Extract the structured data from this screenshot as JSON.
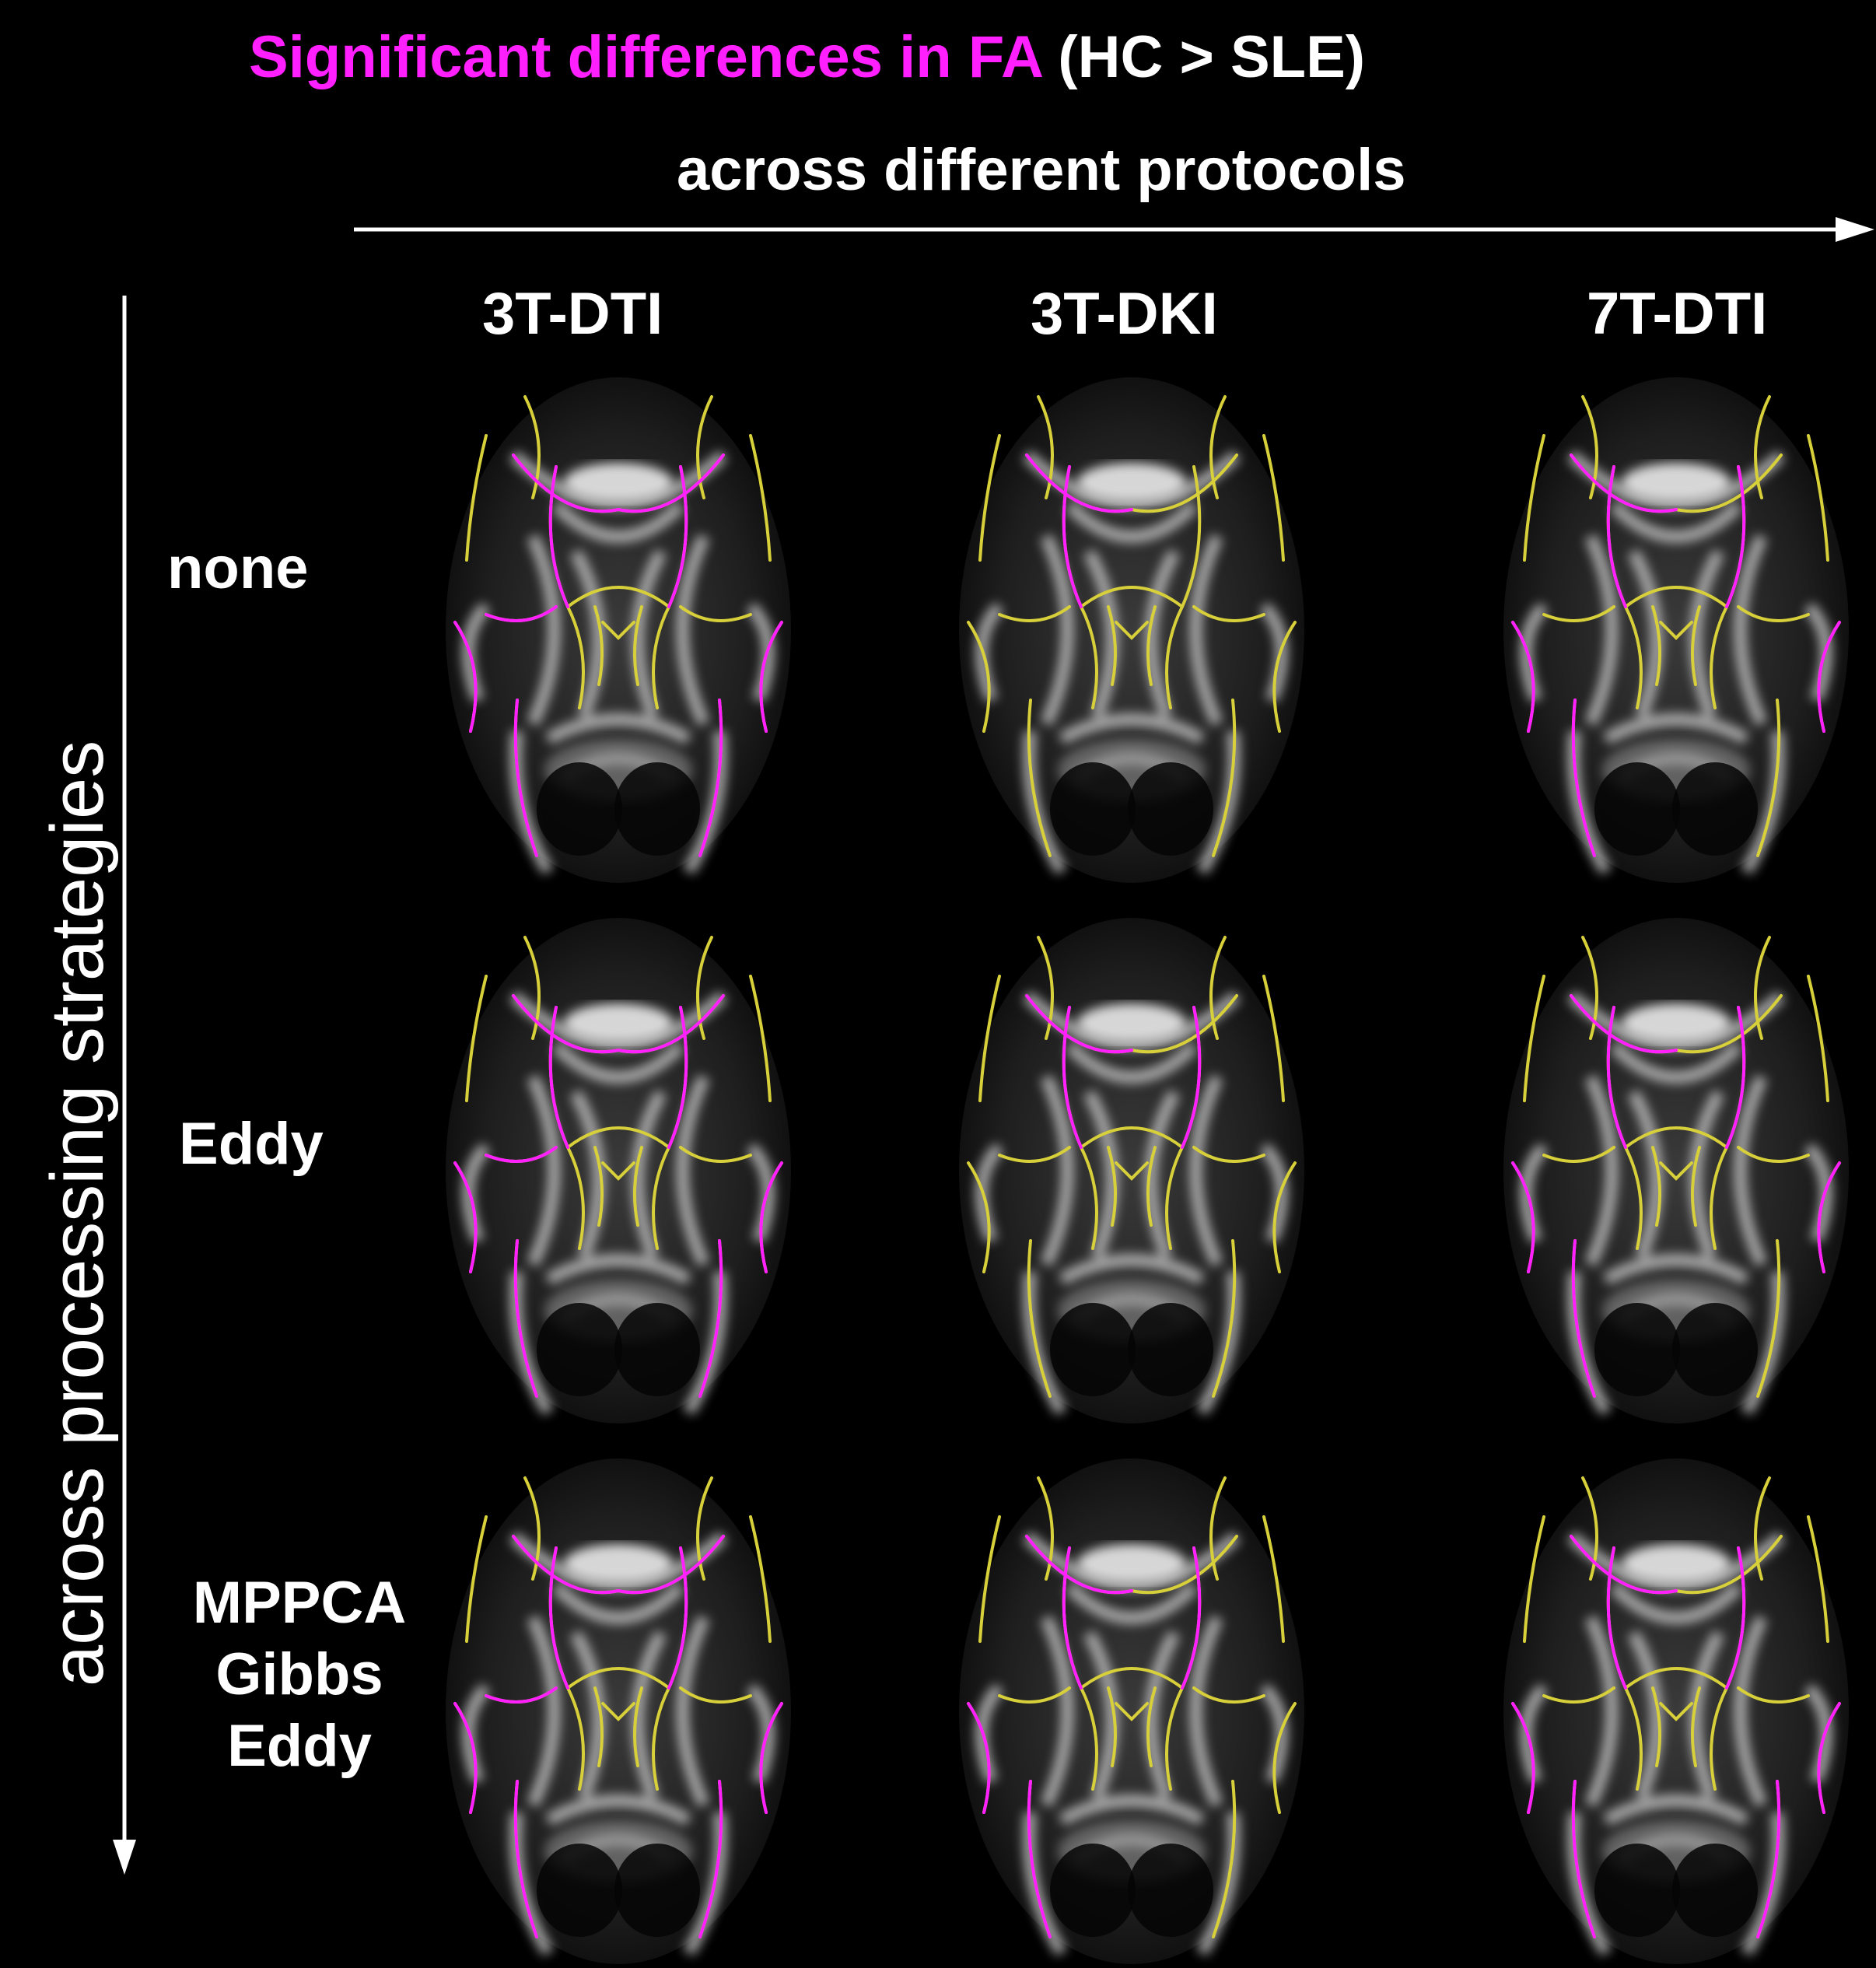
{
  "title": {
    "highlight": "Significant differences in FA",
    "rest": "(HC > SLE)",
    "highlight_color": "#ff1fff"
  },
  "subtitle": "across different protocols",
  "vertical_label": "across processing strategies",
  "columns": [
    "3T-DTI",
    "3T-DKI",
    "7T-DTI"
  ],
  "rows": [
    {
      "lines": [
        "none"
      ]
    },
    {
      "lines": [
        "Eddy"
      ]
    },
    {
      "lines": [
        "MPPCA",
        "Gibbs",
        "Eddy"
      ]
    }
  ],
  "colors": {
    "skeleton": "#d8d03a",
    "significant": "#ff1fff",
    "background": "#000000"
  }
}
